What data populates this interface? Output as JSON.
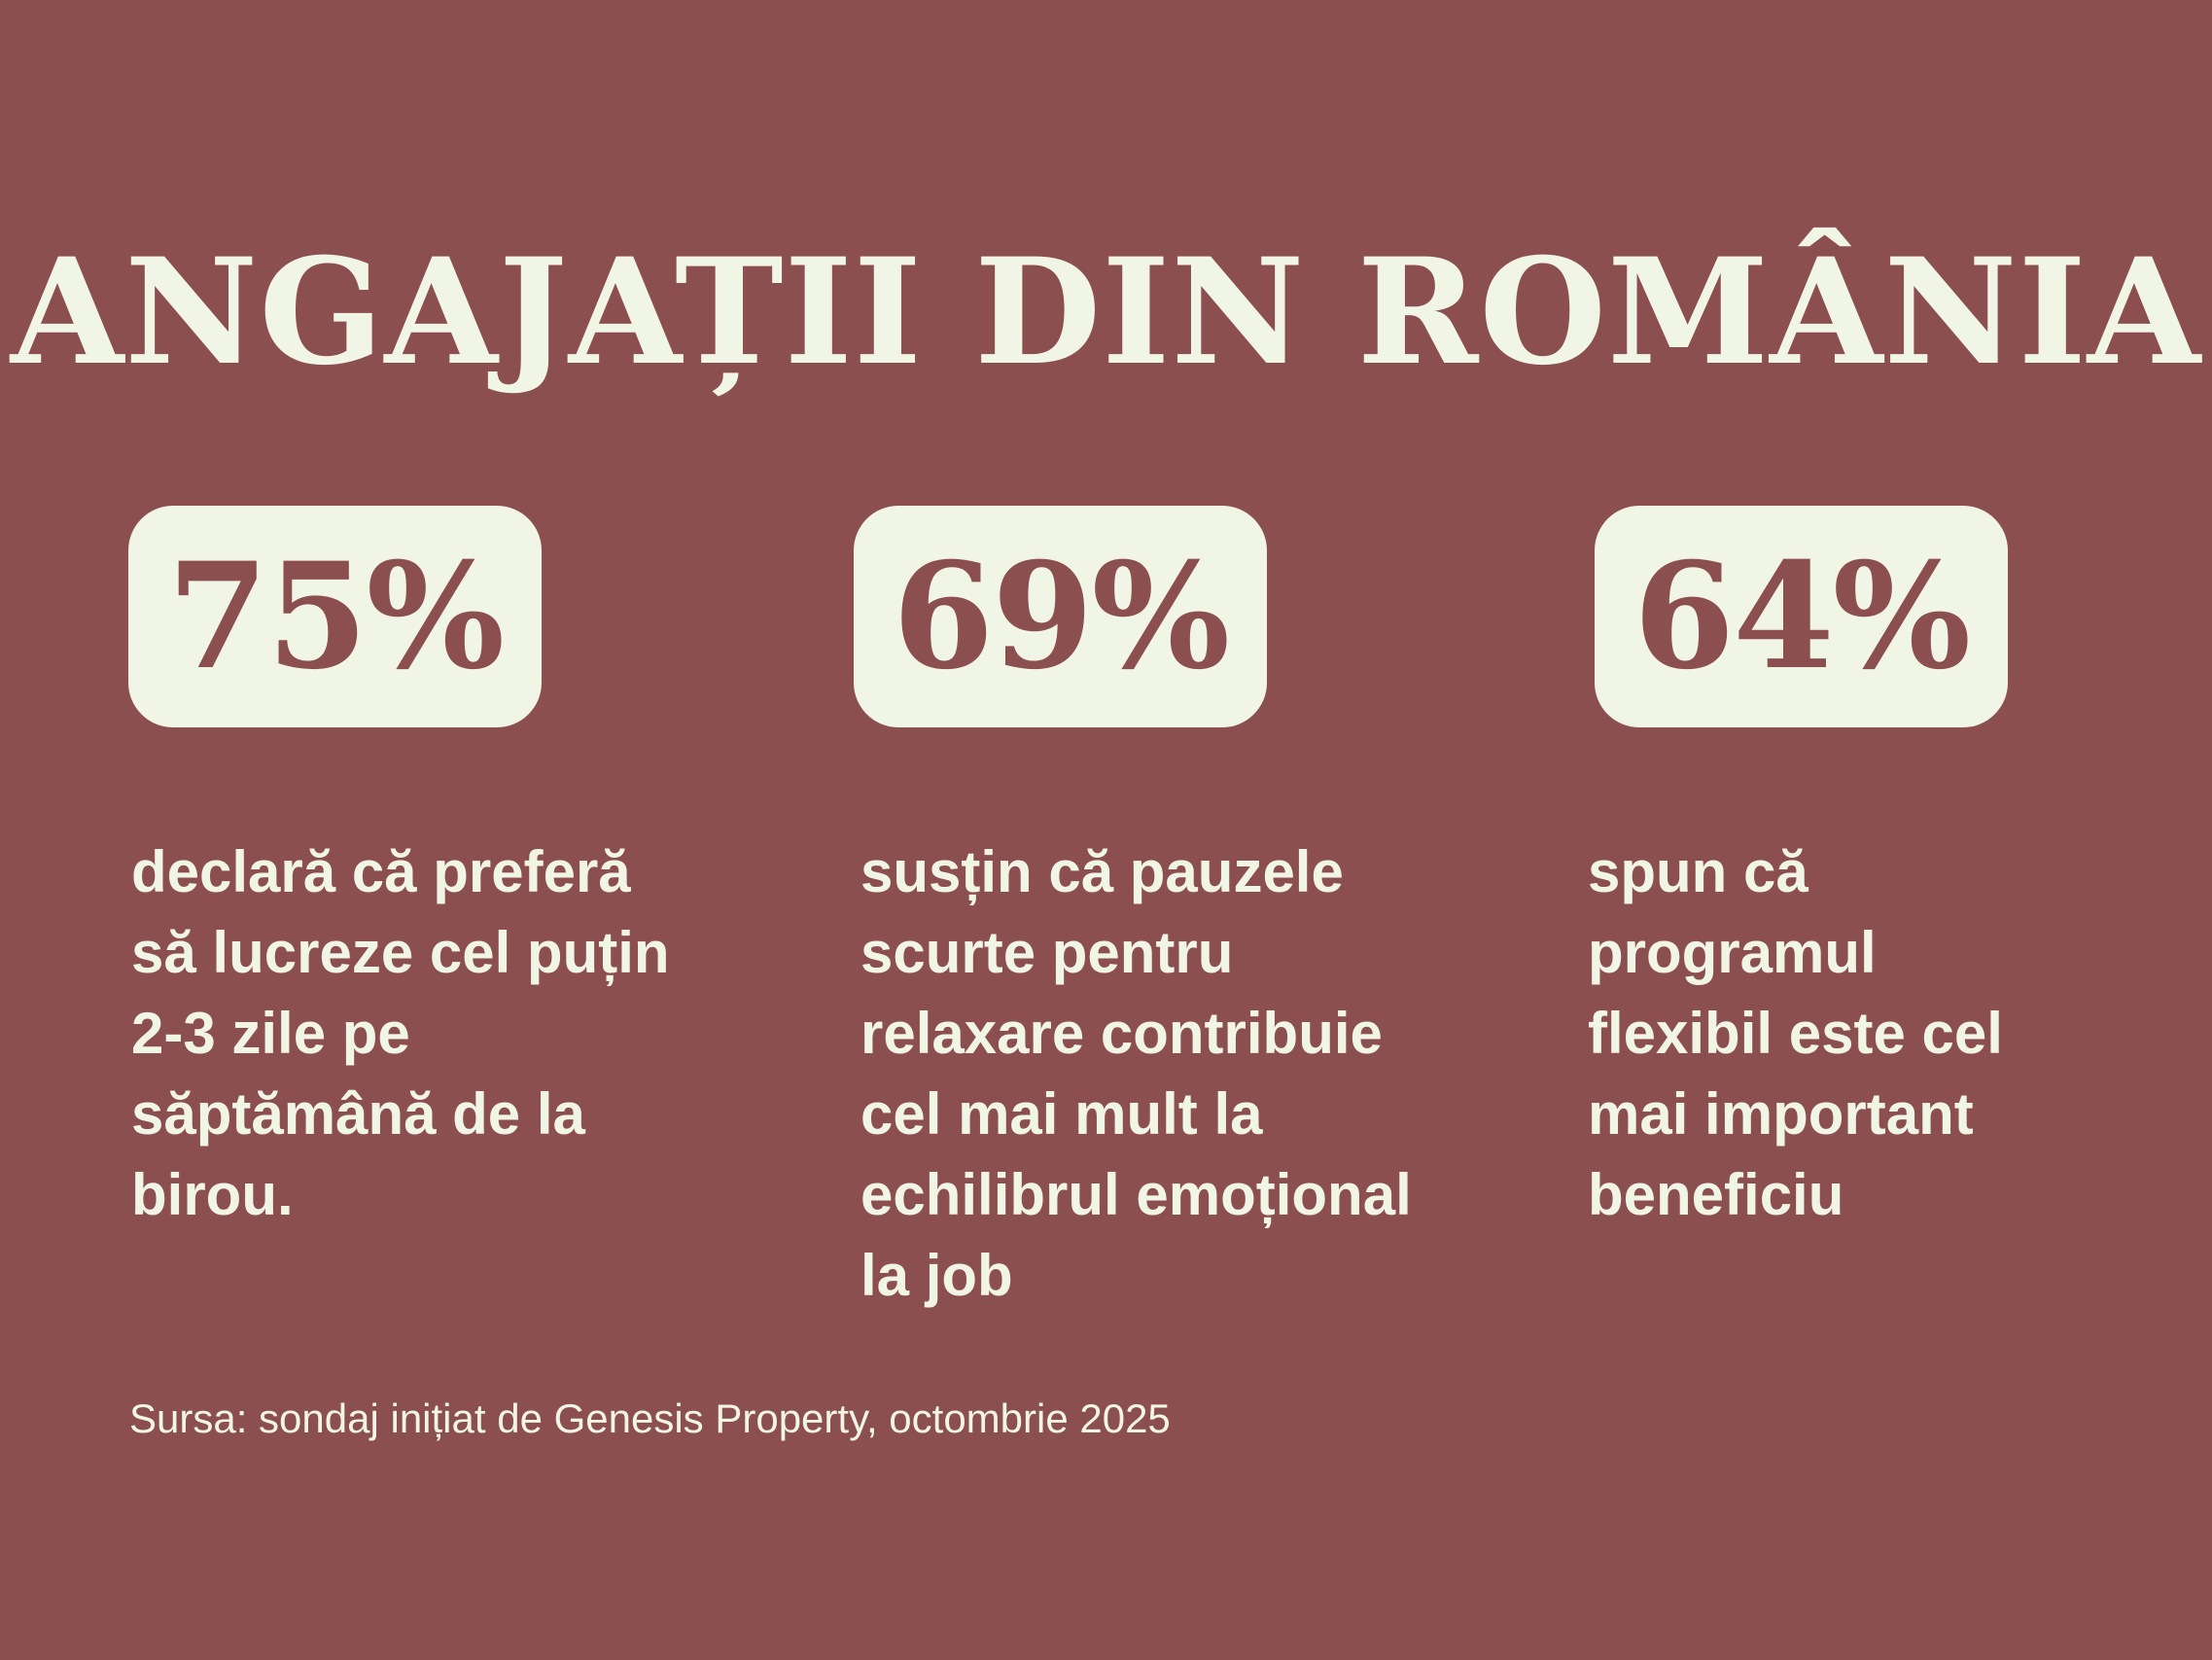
{
  "title": "ANGAJAȚII DIN ROMÂNIA",
  "stats": [
    {
      "value": "75%",
      "description": "declară că preferă\nsă lucreze cel puțin\n2-3 zile pe\nsăptămână de la\nbirou."
    },
    {
      "value": "69%",
      "description": "susțin că pauzele\nscurte pentru\nrelaxare contribuie\ncel mai mult la\nechilibrul emoțional\nla job"
    },
    {
      "value": "64%",
      "description": "spun că\nprogramul\nflexibil este cel\nmai important\nbeneficiu"
    }
  ],
  "source": "Sursa: sondaj inițiat de Genesis Property, octombrie 2025",
  "colors": {
    "background": "#8c4f4f",
    "foreground": "#f1f5e6"
  }
}
